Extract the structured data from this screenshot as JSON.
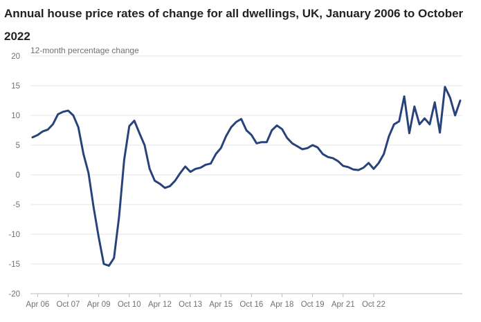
{
  "chart_data": {
    "type": "line",
    "title": "Annual house price rates of change for all dwellings, UK, January 2006 to October 2022",
    "ylabel": "12-month percentage change",
    "xlabel": "",
    "ylim": [
      -20,
      20
    ],
    "yticks": [
      20,
      15,
      10,
      5,
      0,
      -5,
      -10,
      -15,
      -20
    ],
    "xticks": [
      "Apr 06",
      "Oct 07",
      "Apr 09",
      "Oct 10",
      "Apr 12",
      "Oct 13",
      "Apr 15",
      "Oct 16",
      "Apr 18",
      "Oct 19",
      "Apr 21",
      "Oct 22"
    ],
    "grid": true,
    "line_color": "#27437a",
    "series": [
      {
        "points": [
          [
            "Jan 06",
            6.3
          ],
          [
            "Apr 06",
            6.7
          ],
          [
            "Jul 06",
            7.3
          ],
          [
            "Oct 06",
            7.6
          ],
          [
            "Jan 07",
            8.5
          ],
          [
            "Apr 07",
            10.2
          ],
          [
            "Jul 07",
            10.6
          ],
          [
            "Oct 07",
            10.8
          ],
          [
            "Jan 08",
            10.0
          ],
          [
            "Apr 08",
            8.0
          ],
          [
            "Jul 08",
            3.5
          ],
          [
            "Oct 08",
            0.3
          ],
          [
            "Jan 09",
            -5.5
          ],
          [
            "Apr 09",
            -10.5
          ],
          [
            "Jul 09",
            -15.0
          ],
          [
            "Oct 09",
            -15.3
          ],
          [
            "Jan 10",
            -14.0
          ],
          [
            "Apr 10",
            -7.0
          ],
          [
            "Jul 10",
            2.5
          ],
          [
            "Oct 10",
            8.2
          ],
          [
            "Jan 11",
            9.1
          ],
          [
            "Apr 11",
            7.0
          ],
          [
            "Jul 11",
            5.0
          ],
          [
            "Oct 11",
            1.0
          ],
          [
            "Jan 12",
            -1.0
          ],
          [
            "Apr 12",
            -1.5
          ],
          [
            "Jul 12",
            -2.2
          ],
          [
            "Oct 12",
            -1.9
          ],
          [
            "Jan 13",
            -1.0
          ],
          [
            "Apr 13",
            0.3
          ],
          [
            "Jul 13",
            1.4
          ],
          [
            "Oct 13",
            0.5
          ],
          [
            "Jan 14",
            1.0
          ],
          [
            "Apr 14",
            1.2
          ],
          [
            "Jul 14",
            1.7
          ],
          [
            "Oct 14",
            1.9
          ],
          [
            "Jan 15",
            3.5
          ],
          [
            "Apr 15",
            4.5
          ],
          [
            "Jul 15",
            6.5
          ],
          [
            "Oct 15",
            8.0
          ],
          [
            "Jan 16",
            8.9
          ],
          [
            "Apr 16",
            9.4
          ],
          [
            "Jul 16",
            7.5
          ],
          [
            "Oct 16",
            6.7
          ],
          [
            "Jan 17",
            5.3
          ],
          [
            "Apr 17",
            5.5
          ],
          [
            "Jul 17",
            5.5
          ],
          [
            "Oct 17",
            7.5
          ],
          [
            "Jan 18",
            8.3
          ],
          [
            "Apr 18",
            7.7
          ],
          [
            "Jul 18",
            6.2
          ],
          [
            "Oct 18",
            5.3
          ],
          [
            "Jan 19",
            4.8
          ],
          [
            "Apr 19",
            4.3
          ],
          [
            "Jul 19",
            4.5
          ],
          [
            "Oct 19",
            5.0
          ],
          [
            "Jan 20",
            4.6
          ],
          [
            "Apr 20",
            3.5
          ],
          [
            "Jul 20",
            3.0
          ],
          [
            "Oct 20",
            2.8
          ],
          [
            "Jan 21",
            2.3
          ],
          [
            "Apr 21",
            1.5
          ],
          [
            "Jul 21",
            1.3
          ],
          [
            "Oct 21",
            0.9
          ],
          [
            "Jan 22",
            0.8
          ],
          [
            "Apr 22",
            1.2
          ],
          [
            "Jul 22",
            2.0
          ],
          [
            "Oct 22",
            1.0
          ],
          [
            "Jan 23",
            2.0
          ],
          [
            "Apr 23",
            3.5
          ],
          [
            "Jul 23",
            6.5
          ],
          [
            "Oct 23",
            8.5
          ],
          [
            "Jan 24",
            9.0
          ],
          [
            "Apr 24",
            13.2
          ],
          [
            "Jul 24",
            7.0
          ],
          [
            "Oct 24",
            11.5
          ],
          [
            "Jan 25",
            8.5
          ],
          [
            "Apr 25",
            9.5
          ],
          [
            "Jul 25",
            8.5
          ],
          [
            "Oct 25",
            12.2
          ],
          [
            "Jan 26",
            7.1
          ],
          [
            "Apr 26",
            14.8
          ],
          [
            "Jul 26",
            13.0
          ],
          [
            "Oct 26",
            10.0
          ],
          [
            "Jan 27",
            12.5
          ]
        ]
      }
    ]
  }
}
